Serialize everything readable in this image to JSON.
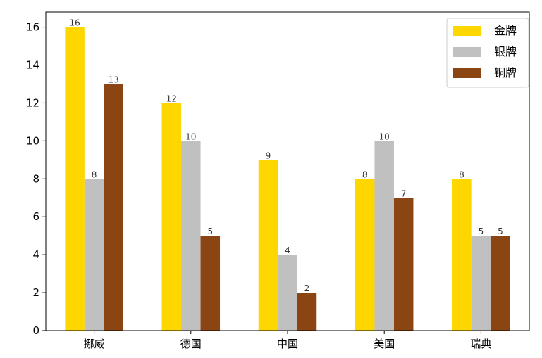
{
  "chart_data": {
    "type": "bar",
    "categories": [
      "挪威",
      "德国",
      "中国",
      "美国",
      "瑞典"
    ],
    "series": [
      {
        "name": "金牌",
        "color": "#FFD700",
        "values": [
          16,
          12,
          9,
          8,
          8
        ]
      },
      {
        "name": "银牌",
        "color": "#C0C0C0",
        "values": [
          8,
          10,
          4,
          10,
          5
        ]
      },
      {
        "name": "铜牌",
        "color": "#8B4513",
        "values": [
          13,
          5,
          2,
          7,
          5
        ]
      }
    ],
    "title": "",
    "xlabel": "",
    "ylabel": "",
    "ylim": [
      0,
      16.8
    ],
    "yticks": [
      0,
      2,
      4,
      6,
      8,
      10,
      12,
      14,
      16
    ],
    "grid": false,
    "legend": "top-right"
  }
}
